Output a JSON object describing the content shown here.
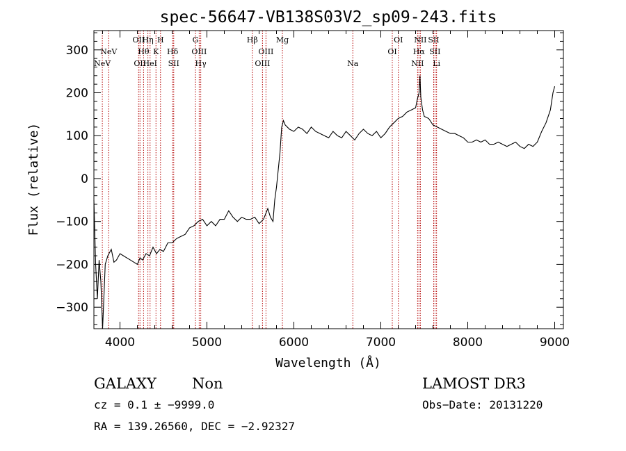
{
  "chart_data": {
    "type": "line",
    "title": "spec-56647-VB138S03V2_sp09-243.fits",
    "xlabel": "Wavelength (Å)",
    "ylabel": "Flux (relative)",
    "xlim": [
      3700,
      9100
    ],
    "ylim": [
      -350,
      345
    ],
    "xticks": [
      4000,
      5000,
      6000,
      7000,
      8000,
      9000
    ],
    "yticks": [
      -300,
      -200,
      -100,
      0,
      100,
      200,
      300
    ],
    "grid": false,
    "series": [
      {
        "color": "#000000",
        "x": [
          3700,
          3720,
          3740,
          3760,
          3780,
          3800,
          3830,
          3860,
          3900,
          3930,
          3960,
          4000,
          4040,
          4080,
          4120,
          4160,
          4200,
          4230,
          4260,
          4300,
          4340,
          4380,
          4420,
          4460,
          4500,
          4550,
          4600,
          4650,
          4700,
          4750,
          4800,
          4850,
          4900,
          4950,
          5000,
          5050,
          5100,
          5150,
          5200,
          5250,
          5300,
          5350,
          5400,
          5450,
          5500,
          5550,
          5600,
          5650,
          5700,
          5730,
          5760,
          5780,
          5800,
          5820,
          5840,
          5860,
          5880,
          5900,
          5950,
          6000,
          6050,
          6100,
          6150,
          6200,
          6250,
          6300,
          6350,
          6400,
          6450,
          6500,
          6550,
          6600,
          6650,
          6700,
          6750,
          6800,
          6850,
          6900,
          6950,
          7000,
          7050,
          7100,
          7150,
          7200,
          7250,
          7300,
          7350,
          7400,
          7420,
          7440,
          7450,
          7460,
          7480,
          7500,
          7550,
          7600,
          7650,
          7700,
          7750,
          7800,
          7850,
          7900,
          7950,
          8000,
          8050,
          8100,
          8150,
          8200,
          8250,
          8300,
          8350,
          8400,
          8450,
          8500,
          8550,
          8600,
          8650,
          8700,
          8750,
          8800,
          8850,
          8900,
          8950,
          8980,
          9000
        ],
        "y": [
          -50,
          -200,
          -280,
          -190,
          -240,
          -350,
          -200,
          -180,
          -165,
          -195,
          -190,
          -175,
          -180,
          -185,
          -190,
          -195,
          -200,
          -185,
          -190,
          -175,
          -180,
          -160,
          -175,
          -165,
          -170,
          -150,
          -150,
          -140,
          -135,
          -130,
          -115,
          -110,
          -100,
          -95,
          -110,
          -100,
          -110,
          -95,
          -95,
          -75,
          -90,
          -100,
          -90,
          -95,
          -95,
          -90,
          -105,
          -95,
          -70,
          -90,
          -100,
          -50,
          -20,
          20,
          60,
          120,
          135,
          125,
          115,
          110,
          120,
          115,
          105,
          120,
          110,
          105,
          100,
          95,
          110,
          100,
          95,
          110,
          100,
          90,
          105,
          115,
          105,
          100,
          110,
          95,
          105,
          120,
          130,
          140,
          145,
          155,
          160,
          165,
          185,
          200,
          240,
          190,
          160,
          145,
          140,
          125,
          120,
          115,
          110,
          105,
          105,
          100,
          95,
          85,
          85,
          90,
          85,
          90,
          80,
          80,
          85,
          80,
          75,
          80,
          85,
          75,
          70,
          80,
          75,
          85,
          110,
          130,
          160,
          200,
          215
        ]
      }
    ],
    "spectral_lines": [
      {
        "name": "NeV",
        "x": 3797,
        "row": 3
      },
      {
        "name": "NeV",
        "x": 3870,
        "row": 2
      },
      {
        "name": "OII",
        "x": 4214,
        "row": 1
      },
      {
        "name": "OII",
        "x": 4230,
        "row": 3
      },
      {
        "name": "Hθ",
        "x": 4271,
        "row": 2
      },
      {
        "name": "Hη",
        "x": 4321,
        "row": 1
      },
      {
        "name": "HeI",
        "x": 4346,
        "row": 3
      },
      {
        "name": "K",
        "x": 4414,
        "row": 2
      },
      {
        "name": "H",
        "x": 4466,
        "row": 1
      },
      {
        "name": "Hδ",
        "x": 4605,
        "row": 2
      },
      {
        "name": "SII",
        "x": 4618,
        "row": 3
      },
      {
        "name": "G",
        "x": 4868,
        "row": 1
      },
      {
        "name": "OIII",
        "x": 4911,
        "row": 2
      },
      {
        "name": "Hγ",
        "x": 4929,
        "row": 3
      },
      {
        "name": "Hβ",
        "x": 5522,
        "row": 1
      },
      {
        "name": "OIII",
        "x": 5639,
        "row": 3
      },
      {
        "name": "OIII",
        "x": 5679,
        "row": 2
      },
      {
        "name": "Mg",
        "x": 5868,
        "row": 1
      },
      {
        "name": "Na",
        "x": 6678,
        "row": 3
      },
      {
        "name": "OI",
        "x": 7132,
        "row": 2
      },
      {
        "name": "OI",
        "x": 7202,
        "row": 1
      },
      {
        "name": "NII",
        "x": 7423,
        "row": 3
      },
      {
        "name": "Hα",
        "x": 7438,
        "row": 2
      },
      {
        "name": "NII",
        "x": 7455,
        "row": 1
      },
      {
        "name": "SII",
        "x": 7608,
        "row": 1
      },
      {
        "name": "SII",
        "x": 7623,
        "row": 2
      },
      {
        "name": "Li",
        "x": 7641,
        "row": 3
      }
    ],
    "line_color": "#b40000"
  },
  "info": {
    "object_type": "GALAXY",
    "subclass": "Non",
    "survey": "LAMOST DR3",
    "cz": "cz = 0.1 ± −9999.0",
    "obs_date": "Obs−Date: 20131220",
    "coords": "RA = 139.26560, DEC =  −2.92327"
  }
}
